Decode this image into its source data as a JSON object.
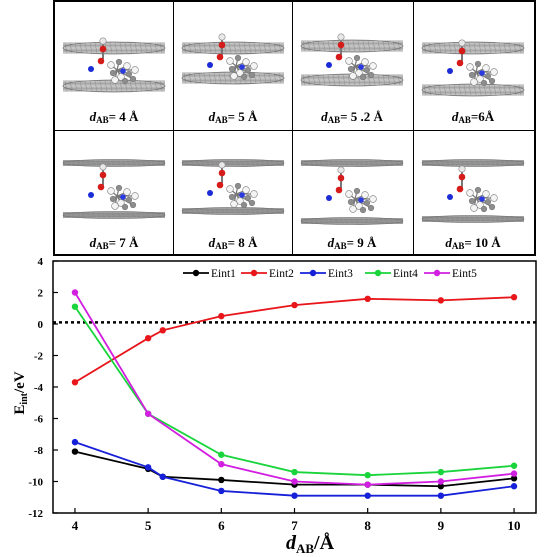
{
  "panels": [
    {
      "prefix": "d",
      "sub": "AB",
      "value": "= 4 Å"
    },
    {
      "prefix": "d",
      "sub": "AB",
      "value": "= 5 Å"
    },
    {
      "prefix": "d",
      "sub": "AB",
      "value": "= 5 .2 Å"
    },
    {
      "prefix": "d",
      "sub": "AB",
      "value": "=6Å"
    },
    {
      "prefix": "d",
      "sub": "AB",
      "value": "= 7 Å"
    },
    {
      "prefix": "d",
      "sub": "AB",
      "value": "= 8 Å"
    },
    {
      "prefix": "d",
      "sub": "AB",
      "value": "= 9 Å"
    },
    {
      "prefix": "d",
      "sub": "AB",
      "value": "= 10 Å"
    }
  ],
  "chart_data": {
    "type": "line",
    "xlabel_main": "d",
    "xlabel_sub": "AB",
    "xlabel_unit": "/Å",
    "ylabel_main": "E",
    "ylabel_sub": "int",
    "ylabel_unit": "/eV",
    "xlim": [
      3.7,
      10.3
    ],
    "ylim": [
      -12,
      4
    ],
    "x_ticks": [
      4,
      5,
      6,
      7,
      8,
      9,
      10
    ],
    "y_ticks": [
      4,
      2,
      0,
      -2,
      -4,
      -6,
      -8,
      -10,
      -12
    ],
    "reference_line": {
      "y": 0.1,
      "style": "dotted",
      "color": "#000000"
    },
    "legend_position": "top-right",
    "series": [
      {
        "name": "Eint1",
        "color": "#000000",
        "x": [
          4,
          5,
          5.2,
          6,
          7,
          8,
          9,
          10
        ],
        "y": [
          -8.1,
          -9.2,
          -9.7,
          -9.9,
          -10.2,
          -10.2,
          -10.3,
          -9.8
        ]
      },
      {
        "name": "Eint2",
        "color": "#e8161b",
        "x": [
          4,
          5,
          5.2,
          6,
          7,
          8,
          9,
          10
        ],
        "y": [
          -3.7,
          -0.9,
          -0.4,
          0.5,
          1.2,
          1.6,
          1.5,
          1.7
        ]
      },
      {
        "name": "Eint3",
        "color": "#1620d8",
        "x": [
          4,
          5,
          5.2,
          6,
          7,
          8,
          9,
          10
        ],
        "y": [
          -7.5,
          -9.1,
          -9.7,
          -10.6,
          -10.9,
          -10.9,
          -10.9,
          -10.3
        ]
      },
      {
        "name": "Eint4",
        "color": "#19d43a",
        "x": [
          4,
          5,
          6,
          7,
          8,
          9,
          10
        ],
        "y": [
          1.1,
          -5.7,
          -8.3,
          -9.4,
          -9.6,
          -9.4,
          -9.0
        ]
      },
      {
        "name": "Eint5",
        "color": "#d21ee0",
        "x": [
          4,
          5,
          6,
          7,
          8,
          9,
          10
        ],
        "y": [
          2.0,
          -5.7,
          -8.9,
          -10.0,
          -10.2,
          -10.0,
          -9.5
        ]
      }
    ]
  }
}
